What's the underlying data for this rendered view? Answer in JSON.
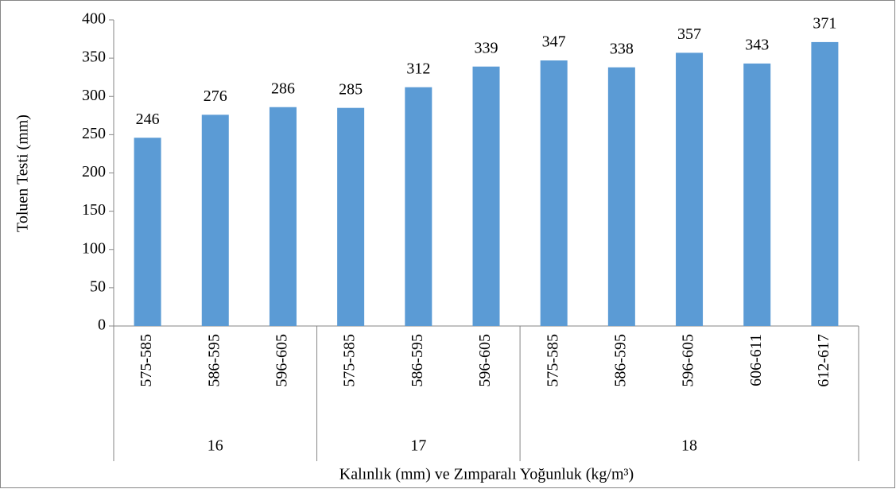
{
  "chart_data": {
    "type": "bar",
    "y_label": "Toluen Testi (mm)",
    "x_label": "Kalınlık (mm) ve Zımparalı Yoğunluk (kg/m³)",
    "color": "#5b9bd5",
    "groups": [
      {
        "label": "16",
        "categories": [
          "575-585",
          "586-595",
          "596-605"
        ],
        "values": [
          246,
          276,
          286
        ]
      },
      {
        "label": "17",
        "categories": [
          "575-585",
          "586-595",
          "596-605"
        ],
        "values": [
          285,
          312,
          339
        ]
      },
      {
        "label": "18",
        "categories": [
          "575-585",
          "586-595",
          "596-605",
          "606-611",
          "612-617"
        ],
        "values": [
          347,
          338,
          357,
          343,
          371
        ]
      }
    ],
    "ylim": [
      0,
      400
    ],
    "yticks": [
      0,
      50,
      100,
      150,
      200,
      250,
      300,
      350,
      400
    ]
  }
}
